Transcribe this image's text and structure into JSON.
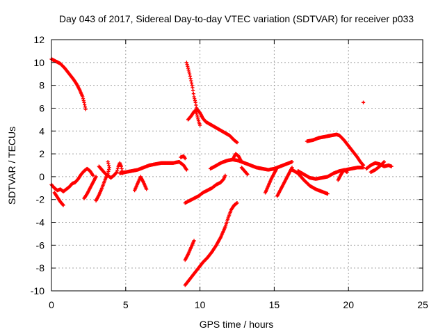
{
  "chart_data": {
    "type": "scatter",
    "title": "Day 043 of 2017, Sidereal Day-to-day VTEC variation (SDTVAR) for receiver p033",
    "xlabel": "GPS time / hours",
    "ylabel": "SDTVAR / TECUs",
    "xlim": [
      0,
      25
    ],
    "ylim": [
      -10,
      12
    ],
    "xticks": [
      "0",
      "5",
      "10",
      "15",
      "20",
      "25"
    ],
    "yticks": [
      "-10",
      "-8",
      "-6",
      "-4",
      "-2",
      "0",
      "2",
      "4",
      "6",
      "8",
      "10",
      "12"
    ],
    "grid": true,
    "marker_color": "#ff0000",
    "series": [
      {
        "segments": [
          [
            [
              0.0,
              10.3
            ],
            [
              0.3,
              10.1
            ],
            [
              0.6,
              9.9
            ],
            [
              0.9,
              9.5
            ],
            [
              1.2,
              9.0
            ],
            [
              1.5,
              8.5
            ],
            [
              1.7,
              8.1
            ],
            [
              1.9,
              7.6
            ],
            [
              2.1,
              7.0
            ],
            [
              2.2,
              6.5
            ],
            [
              2.3,
              5.9
            ]
          ],
          [
            [
              0.0,
              -0.7
            ],
            [
              0.2,
              -1.0
            ],
            [
              0.4,
              -1.2
            ],
            [
              0.6,
              -1.1
            ],
            [
              0.8,
              -1.3
            ],
            [
              1.0,
              -1.1
            ],
            [
              1.2,
              -0.9
            ],
            [
              1.4,
              -0.6
            ],
            [
              1.6,
              -0.5
            ],
            [
              1.8,
              -0.2
            ],
            [
              2.0,
              0.2
            ],
            [
              2.2,
              0.5
            ],
            [
              2.4,
              0.7
            ],
            [
              2.6,
              0.5
            ],
            [
              2.8,
              0.1
            ]
          ],
          [
            [
              0.2,
              -1.4
            ],
            [
              0.4,
              -1.8
            ],
            [
              0.6,
              -2.2
            ],
            [
              0.8,
              -2.5
            ]
          ],
          [
            [
              2.2,
              -1.9
            ],
            [
              2.4,
              -1.5
            ],
            [
              2.6,
              -1.0
            ],
            [
              2.8,
              -0.5
            ],
            [
              3.0,
              0.0
            ]
          ],
          [
            [
              3.0,
              -2.1
            ],
            [
              3.2,
              -1.6
            ],
            [
              3.4,
              -1.0
            ],
            [
              3.6,
              -0.3
            ],
            [
              3.8,
              0.3
            ],
            [
              3.9,
              0.8
            ],
            [
              3.8,
              1.3
            ]
          ],
          [
            [
              3.2,
              0.9
            ],
            [
              3.4,
              0.6
            ],
            [
              3.6,
              0.3
            ],
            [
              3.8,
              0.1
            ],
            [
              4.0,
              -0.1
            ],
            [
              4.2,
              0.1
            ],
            [
              4.4,
              0.4
            ],
            [
              4.5,
              0.9
            ],
            [
              4.6,
              1.2
            ],
            [
              4.7,
              0.9
            ],
            [
              4.8,
              0.3
            ]
          ],
          [
            [
              4.6,
              0.3
            ],
            [
              5.0,
              0.4
            ],
            [
              5.4,
              0.5
            ],
            [
              5.8,
              0.6
            ],
            [
              6.2,
              0.8
            ],
            [
              6.6,
              1.0
            ],
            [
              7.0,
              1.1
            ],
            [
              7.4,
              1.2
            ],
            [
              7.8,
              1.2
            ],
            [
              8.2,
              1.2
            ],
            [
              8.6,
              1.3
            ],
            [
              8.9,
              1.0
            ],
            [
              9.1,
              0.6
            ]
          ],
          [
            [
              5.6,
              -1.2
            ],
            [
              5.8,
              -0.6
            ],
            [
              6.0,
              0.0
            ],
            [
              6.2,
              -0.5
            ],
            [
              6.4,
              -1.1
            ]
          ],
          [
            [
              8.7,
              1.7
            ],
            [
              8.9,
              1.8
            ],
            [
              9.0,
              1.6
            ]
          ],
          [
            [
              9.0,
              -2.3
            ],
            [
              9.3,
              -2.1
            ],
            [
              9.6,
              -1.9
            ],
            [
              9.9,
              -1.7
            ],
            [
              10.2,
              -1.4
            ],
            [
              10.5,
              -1.2
            ],
            [
              10.8,
              -1.0
            ],
            [
              11.1,
              -0.7
            ],
            [
              11.4,
              -0.5
            ],
            [
              11.6,
              -0.2
            ],
            [
              11.7,
              0.1
            ]
          ],
          [
            [
              9.0,
              -9.5
            ],
            [
              9.3,
              -9.0
            ],
            [
              9.6,
              -8.5
            ],
            [
              9.9,
              -8.0
            ],
            [
              10.2,
              -7.5
            ],
            [
              10.5,
              -7.1
            ],
            [
              10.8,
              -6.6
            ],
            [
              11.1,
              -6.0
            ],
            [
              11.4,
              -5.3
            ],
            [
              11.7,
              -4.4
            ],
            [
              11.9,
              -3.6
            ],
            [
              12.1,
              -2.9
            ],
            [
              12.3,
              -2.5
            ],
            [
              12.5,
              -2.3
            ]
          ],
          [
            [
              9.0,
              -7.3
            ],
            [
              9.2,
              -6.8
            ],
            [
              9.4,
              -6.2
            ],
            [
              9.6,
              -5.6
            ]
          ],
          [
            [
              9.1,
              10.0
            ],
            [
              9.2,
              9.5
            ],
            [
              9.3,
              9.0
            ],
            [
              9.4,
              8.4
            ],
            [
              9.5,
              7.8
            ],
            [
              9.6,
              7.0
            ],
            [
              9.7,
              6.5
            ],
            [
              9.8,
              5.8
            ]
          ],
          [
            [
              9.2,
              5.0
            ],
            [
              9.4,
              5.3
            ],
            [
              9.6,
              5.7
            ],
            [
              9.8,
              5.9
            ],
            [
              10.0,
              5.6
            ],
            [
              10.2,
              5.1
            ],
            [
              10.4,
              4.8
            ],
            [
              10.8,
              4.5
            ],
            [
              11.2,
              4.2
            ],
            [
              11.6,
              3.9
            ],
            [
              12.0,
              3.6
            ],
            [
              12.3,
              3.2
            ],
            [
              12.5,
              3.0
            ]
          ],
          [
            [
              9.7,
              5.8
            ],
            [
              9.8,
              5.4
            ],
            [
              9.9,
              4.9
            ],
            [
              10.0,
              4.5
            ]
          ],
          [
            [
              10.7,
              0.7
            ],
            [
              11.0,
              0.9
            ],
            [
              11.4,
              1.2
            ],
            [
              11.8,
              1.4
            ],
            [
              12.2,
              1.5
            ],
            [
              12.6,
              1.4
            ],
            [
              13.0,
              1.2
            ],
            [
              13.4,
              1.0
            ],
            [
              13.8,
              0.8
            ],
            [
              14.2,
              0.7
            ],
            [
              14.6,
              0.6
            ],
            [
              15.0,
              0.7
            ],
            [
              15.4,
              0.9
            ],
            [
              15.8,
              1.1
            ],
            [
              16.2,
              1.3
            ]
          ],
          [
            [
              12.2,
              1.5
            ],
            [
              12.4,
              2.0
            ],
            [
              12.6,
              1.8
            ],
            [
              12.8,
              1.3
            ]
          ],
          [
            [
              12.8,
              0.8
            ],
            [
              13.0,
              0.5
            ],
            [
              13.2,
              0.2
            ]
          ],
          [
            [
              14.4,
              -1.4
            ],
            [
              14.6,
              -0.8
            ],
            [
              14.8,
              -0.2
            ],
            [
              15.0,
              0.3
            ],
            [
              15.2,
              0.8
            ]
          ],
          [
            [
              15.2,
              -1.7
            ],
            [
              15.4,
              -1.2
            ],
            [
              15.6,
              -0.7
            ],
            [
              15.8,
              -0.2
            ],
            [
              16.0,
              0.3
            ],
            [
              16.2,
              0.8
            ]
          ],
          [
            [
              16.2,
              0.6
            ],
            [
              16.6,
              0.3
            ],
            [
              17.0,
              -0.3
            ],
            [
              17.4,
              -0.8
            ],
            [
              17.8,
              -1.1
            ],
            [
              18.2,
              -1.3
            ],
            [
              18.6,
              -1.5
            ]
          ],
          [
            [
              16.6,
              0.5
            ],
            [
              17.0,
              0.2
            ],
            [
              17.4,
              -0.1
            ],
            [
              17.8,
              -0.2
            ],
            [
              18.2,
              -0.1
            ],
            [
              18.6,
              0.0
            ],
            [
              19.0,
              0.3
            ],
            [
              19.4,
              0.5
            ],
            [
              19.8,
              0.6
            ],
            [
              20.2,
              0.7
            ],
            [
              20.6,
              0.8
            ],
            [
              21.0,
              0.8
            ]
          ],
          [
            [
              17.2,
              3.1
            ],
            [
              17.6,
              3.2
            ],
            [
              18.0,
              3.4
            ],
            [
              18.4,
              3.5
            ],
            [
              18.8,
              3.6
            ],
            [
              19.2,
              3.7
            ],
            [
              19.4,
              3.6
            ],
            [
              19.7,
              3.2
            ],
            [
              20.0,
              2.7
            ],
            [
              20.3,
              2.2
            ],
            [
              20.6,
              1.7
            ],
            [
              20.8,
              1.3
            ],
            [
              21.0,
              1.0
            ]
          ],
          [
            [
              19.3,
              -0.3
            ],
            [
              19.5,
              0.2
            ],
            [
              19.7,
              0.6
            ],
            [
              19.9,
              0.4
            ]
          ],
          [
            [
              21.0,
              6.5
            ]
          ],
          [
            [
              21.2,
              0.7
            ],
            [
              21.5,
              1.0
            ],
            [
              21.8,
              1.2
            ],
            [
              22.1,
              1.1
            ],
            [
              22.4,
              0.9
            ],
            [
              22.7,
              1.0
            ],
            [
              22.9,
              0.9
            ]
          ],
          [
            [
              21.5,
              0.4
            ],
            [
              21.8,
              0.6
            ],
            [
              22.1,
              0.9
            ],
            [
              22.4,
              1.3
            ]
          ]
        ]
      }
    ]
  }
}
